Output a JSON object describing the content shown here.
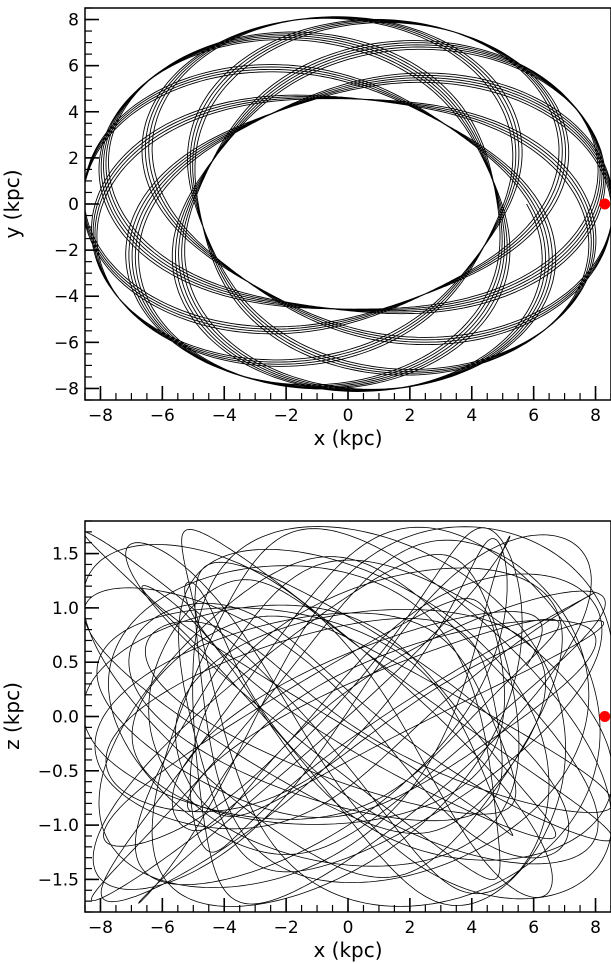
{
  "chart_data": [
    {
      "type": "line",
      "panel": "top",
      "xlabel": "x (kpc)",
      "ylabel": "y (kpc)",
      "xlim": [
        -8.5,
        8.5
      ],
      "ylim": [
        -8.5,
        8.5
      ],
      "xticks": [
        -8,
        -6,
        -4,
        -2,
        0,
        2,
        4,
        6,
        8
      ],
      "xtick_labels": [
        "−8",
        "−6",
        "−4",
        "−2",
        "0",
        "2",
        "4",
        "6",
        "8"
      ],
      "yticks": [
        -8,
        -6,
        -4,
        -2,
        0,
        2,
        4,
        6,
        8
      ],
      "ytick_labels": [
        "−8",
        "−6",
        "−4",
        "−2",
        "0",
        "2",
        "4",
        "6",
        "8"
      ],
      "orbit": {
        "description_values": {
          "pericenter_approx": 4.6,
          "apocenter_approx": 8.4,
          "line_color": "#000000"
        }
      },
      "marker": {
        "x": 8.3,
        "y": 0.0,
        "color": "#ff0000"
      }
    },
    {
      "type": "line",
      "panel": "bottom",
      "xlabel": "x (kpc)",
      "ylabel": "z (kpc)",
      "xlim": [
        -8.5,
        8.5
      ],
      "ylim": [
        -1.8,
        1.8
      ],
      "xticks": [
        -8,
        -6,
        -4,
        -2,
        0,
        2,
        4,
        6,
        8
      ],
      "xtick_labels": [
        "−8",
        "−6",
        "−4",
        "−2",
        "0",
        "2",
        "4",
        "6",
        "8"
      ],
      "yticks": [
        -1.5,
        -1.0,
        -0.5,
        0.0,
        0.5,
        1.0,
        1.5
      ],
      "ytick_labels": [
        "−1.5",
        "−1.0",
        "−0.5",
        "0.0",
        "0.5",
        "1.0",
        "1.5"
      ],
      "orbit": {
        "description_values": {
          "z_amplitude_approx": 1.8,
          "line_color": "#000000"
        }
      },
      "marker": {
        "x": 8.3,
        "y": 0.0,
        "color": "#ff0000"
      }
    }
  ]
}
